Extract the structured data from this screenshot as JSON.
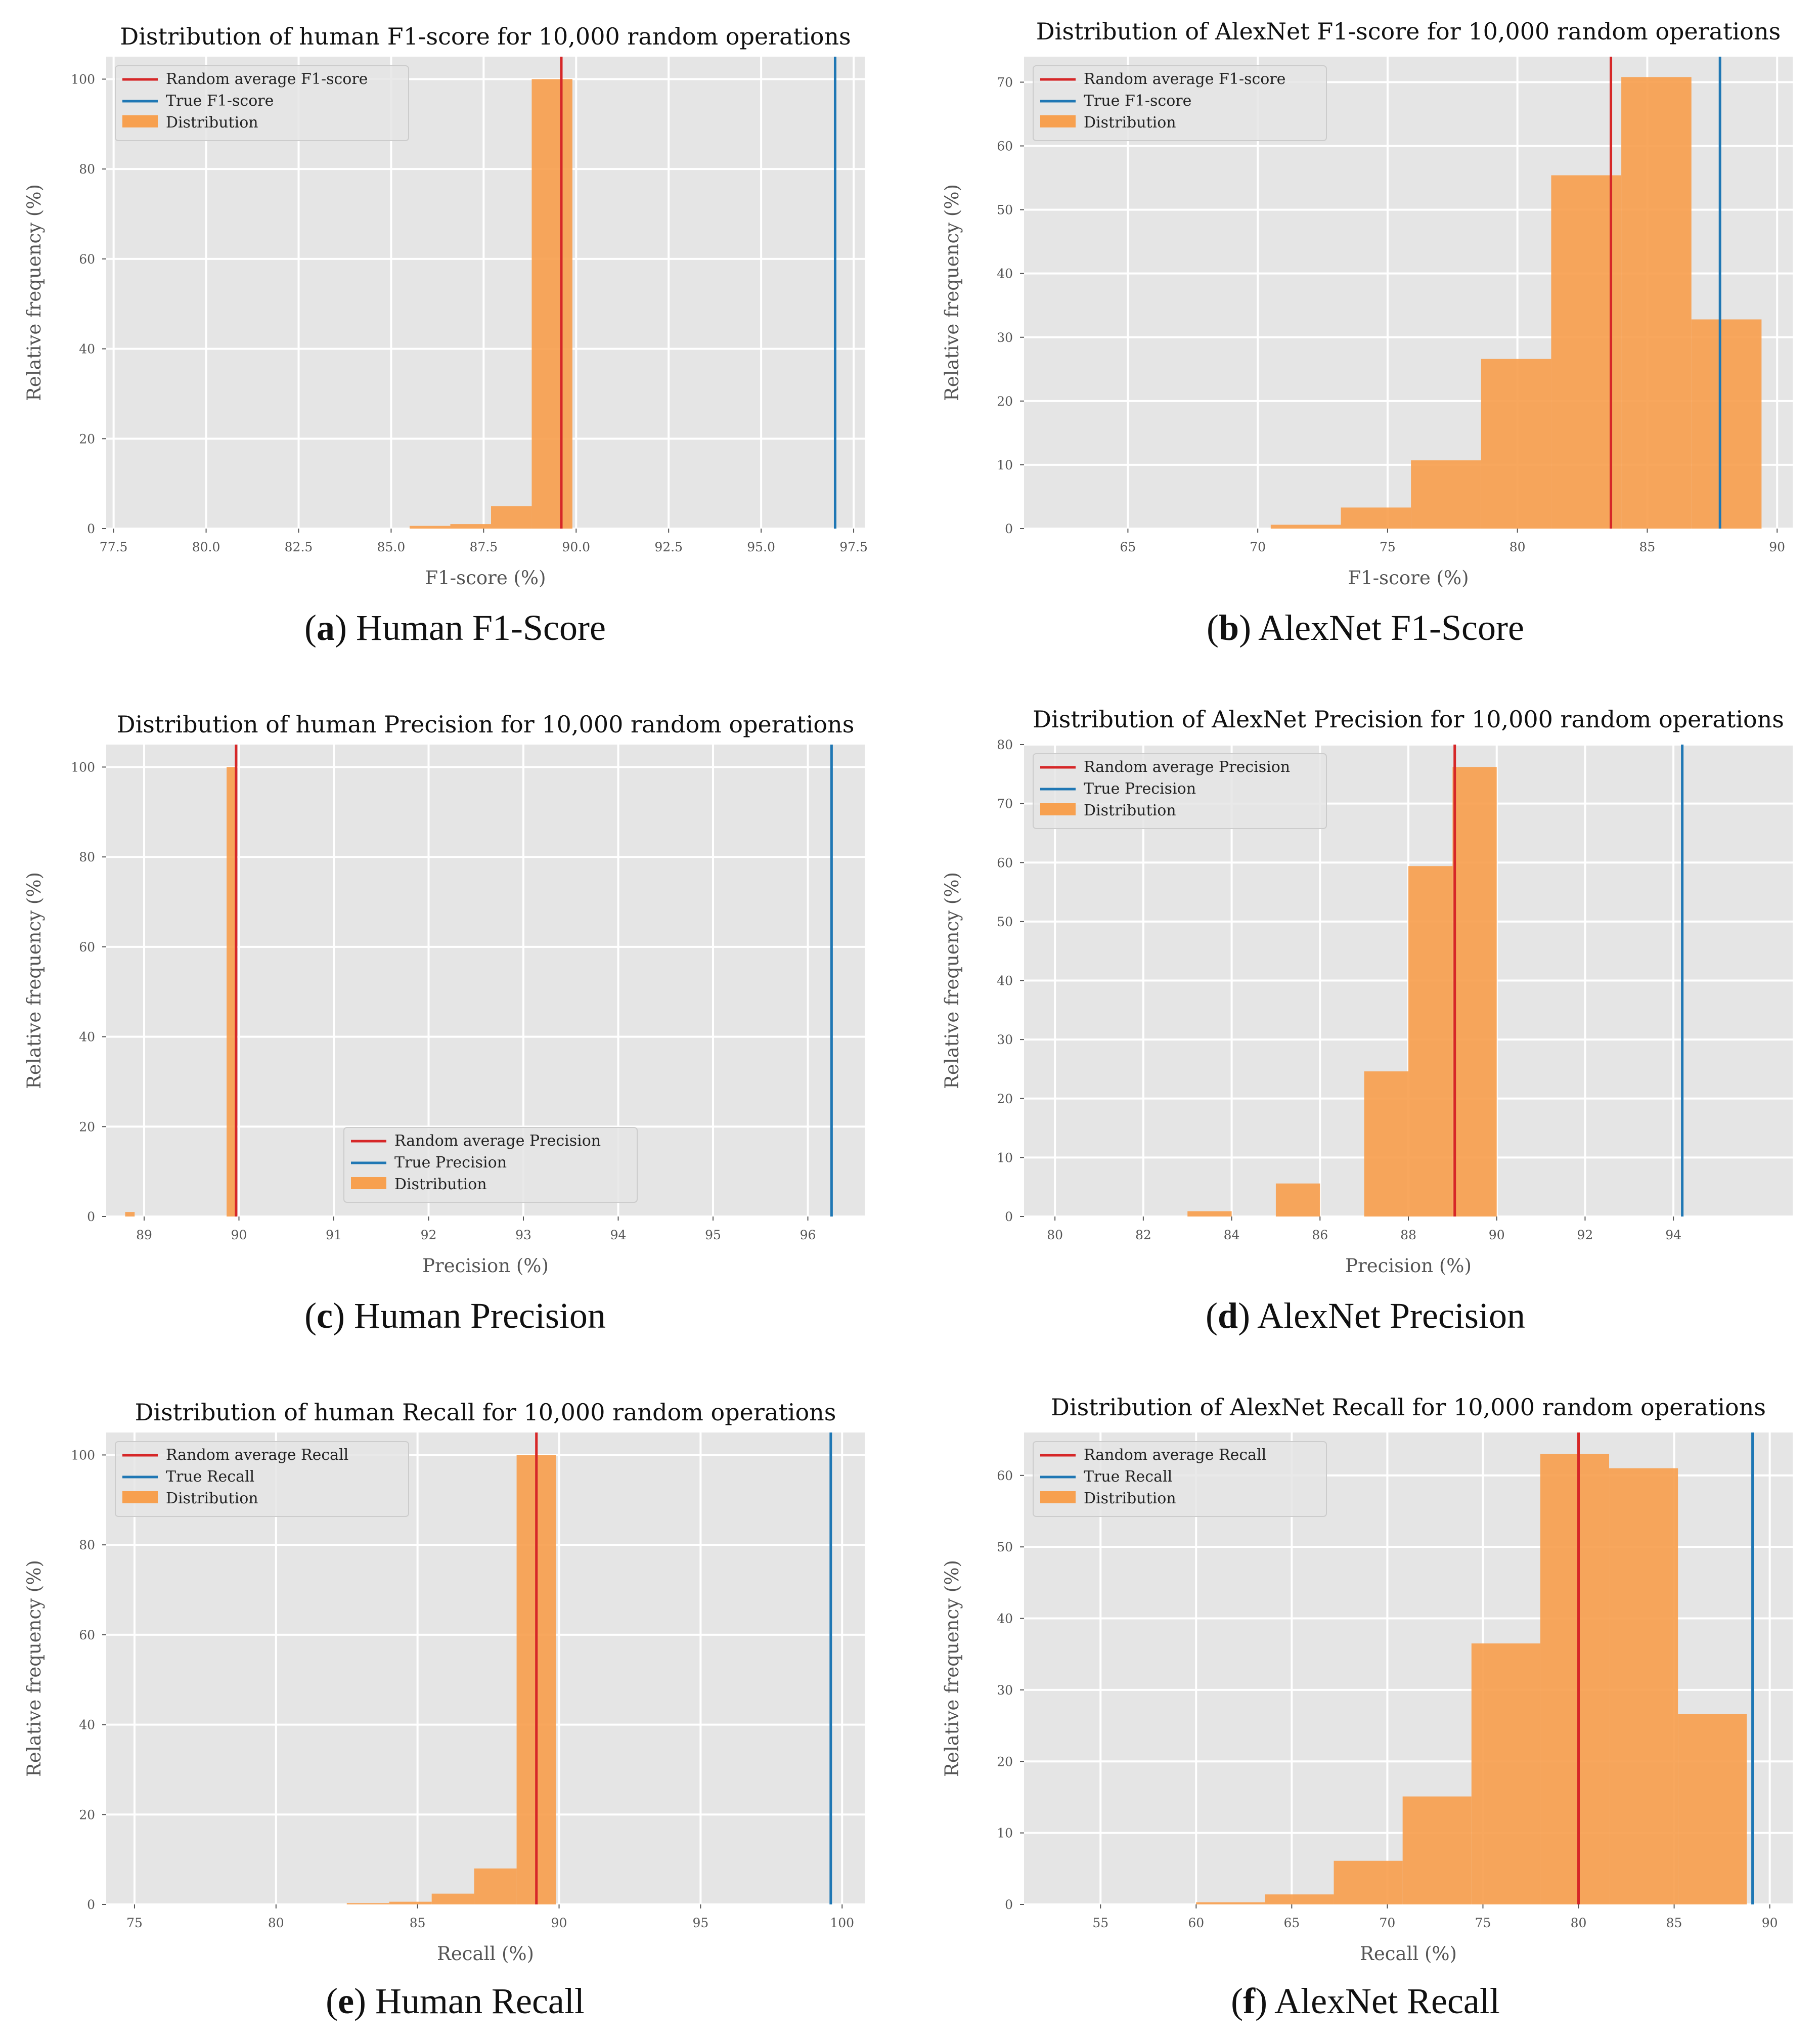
{
  "chart_data": [
    {
      "id": "a",
      "type": "bar",
      "title": "Distribution of human F1-score for 10,000 random operations",
      "xlabel": "F1-score (%)",
      "ylabel": "Relative frequency (%)",
      "xlim": [
        77.3,
        97.8
      ],
      "ylim": [
        0,
        105
      ],
      "xticks": [
        77.5,
        80.0,
        82.5,
        85.0,
        87.5,
        90.0,
        92.5,
        95.0,
        97.5
      ],
      "xtick_labels": [
        "77.5",
        "80.0",
        "82.5",
        "85.0",
        "87.5",
        "90.0",
        "92.5",
        "95.0",
        "97.5"
      ],
      "yticks": [
        0,
        20,
        40,
        60,
        80,
        100
      ],
      "bins": [
        [
          85.5,
          86.6,
          0.6
        ],
        [
          86.6,
          87.7,
          1.0
        ],
        [
          87.7,
          88.8,
          5.0
        ],
        [
          88.8,
          89.9,
          100.0
        ]
      ],
      "random_average": 89.6,
      "true_value": 97.0,
      "legend": [
        "Random average F1-score",
        "True F1-score",
        "Distribution"
      ],
      "legend_position": "top-left",
      "caption_letter": "a",
      "caption_text": " Human F1-Score"
    },
    {
      "id": "b",
      "type": "bar",
      "title": "Distribution of AlexNet F1-score for 10,000 random operations",
      "xlabel": "F1-score (%)",
      "ylabel": "Relative frequency (%)",
      "xlim": [
        61.0,
        90.6
      ],
      "ylim": [
        0,
        74
      ],
      "xticks": [
        65,
        70,
        75,
        80,
        85,
        90
      ],
      "xtick_labels": [
        "65",
        "70",
        "75",
        "80",
        "85",
        "90"
      ],
      "yticks": [
        0,
        10,
        20,
        30,
        40,
        50,
        60,
        70
      ],
      "bins": [
        [
          70.5,
          73.2,
          0.6
        ],
        [
          73.2,
          75.9,
          3.3
        ],
        [
          75.9,
          78.6,
          10.7
        ],
        [
          78.6,
          81.3,
          26.6
        ],
        [
          81.3,
          84.0,
          55.4
        ],
        [
          84.0,
          86.7,
          70.8
        ],
        [
          86.7,
          89.4,
          32.8
        ]
      ],
      "random_average": 83.6,
      "true_value": 87.8,
      "legend": [
        "Random average F1-score",
        "True F1-score",
        "Distribution"
      ],
      "legend_position": "top-left",
      "caption_letter": "b",
      "caption_text": " AlexNet F1-Score"
    },
    {
      "id": "c",
      "type": "bar",
      "title": "Distribution of human Precision for 10,000 random operations",
      "xlabel": "Precision (%)",
      "ylabel": "Relative frequency (%)",
      "xlim": [
        88.6,
        96.6
      ],
      "ylim": [
        0,
        105
      ],
      "xticks": [
        89,
        90,
        91,
        92,
        93,
        94,
        95,
        96
      ],
      "xtick_labels": [
        "89",
        "90",
        "91",
        "92",
        "93",
        "94",
        "95",
        "96"
      ],
      "yticks": [
        0,
        20,
        40,
        60,
        80,
        100
      ],
      "bins": [
        [
          88.8,
          88.9,
          1.0
        ],
        [
          89.87,
          89.97,
          100.0
        ]
      ],
      "random_average": 89.97,
      "true_value": 96.25,
      "legend": [
        "Random average Precision",
        "True Precision",
        "Distribution"
      ],
      "legend_position": "lower-center",
      "caption_letter": "c",
      "caption_text": " Human Precision"
    },
    {
      "id": "d",
      "type": "bar",
      "title": "Distribution of AlexNet Precision for 10,000 random operations",
      "xlabel": "Precision (%)",
      "ylabel": "Relative frequency (%)",
      "xlim": [
        79.3,
        96.7
      ],
      "ylim": [
        0,
        80
      ],
      "xticks": [
        80,
        82,
        84,
        86,
        88,
        90,
        92,
        94
      ],
      "xtick_labels": [
        "80",
        "82",
        "84",
        "86",
        "88",
        "90",
        "92",
        "94"
      ],
      "yticks": [
        0,
        10,
        20,
        30,
        40,
        50,
        60,
        70,
        80
      ],
      "bins": [
        [
          83.0,
          84.0,
          0.9
        ],
        [
          85.0,
          86.0,
          5.6
        ],
        [
          87.0,
          88.0,
          24.6
        ],
        [
          88.0,
          89.0,
          59.4
        ],
        [
          89.0,
          90.0,
          76.2
        ]
      ],
      "random_average": 89.05,
      "true_value": 94.2,
      "legend": [
        "Random average Precision",
        "True Precision",
        "Distribution"
      ],
      "legend_position": "top-left",
      "caption_letter": "d",
      "caption_text": " AlexNet Precision"
    },
    {
      "id": "e",
      "type": "bar",
      "title": "Distribution of human Recall for 10,000 random operations",
      "xlabel": "Recall (%)",
      "ylabel": "Relative frequency (%)",
      "xlim": [
        74.0,
        100.8
      ],
      "ylim": [
        0,
        105
      ],
      "xticks": [
        75,
        80,
        85,
        90,
        95,
        100
      ],
      "xtick_labels": [
        "75",
        "80",
        "85",
        "90",
        "95",
        "100"
      ],
      "yticks": [
        0,
        20,
        40,
        60,
        80,
        100
      ],
      "bins": [
        [
          82.5,
          84.0,
          0.3
        ],
        [
          84.0,
          85.5,
          0.6
        ],
        [
          85.5,
          87.0,
          2.4
        ],
        [
          87.0,
          88.5,
          8.0
        ],
        [
          88.5,
          89.9,
          100.0
        ]
      ],
      "random_average": 89.2,
      "true_value": 99.6,
      "legend": [
        "Random average Recall",
        "True Recall",
        "Distribution"
      ],
      "legend_position": "top-left",
      "caption_letter": "e",
      "caption_text": " Human Recall"
    },
    {
      "id": "f",
      "type": "bar",
      "title": "Distribution of AlexNet Recall for 10,000 random operations",
      "xlabel": "Recall (%)",
      "ylabel": "Relative frequency (%)",
      "xlim": [
        51.0,
        91.2
      ],
      "ylim": [
        0,
        66
      ],
      "xticks": [
        55,
        60,
        65,
        70,
        75,
        80,
        85,
        90
      ],
      "xtick_labels": [
        "55",
        "60",
        "65",
        "70",
        "75",
        "80",
        "85",
        "90"
      ],
      "yticks": [
        0,
        10,
        20,
        30,
        40,
        50,
        60
      ],
      "bins": [
        [
          60.0,
          63.6,
          0.3
        ],
        [
          63.6,
          67.2,
          1.4
        ],
        [
          67.2,
          70.8,
          6.1
        ],
        [
          70.8,
          74.4,
          15.1
        ],
        [
          74.4,
          78.0,
          36.5
        ],
        [
          78.0,
          81.6,
          63.0
        ],
        [
          81.6,
          85.2,
          61.0
        ],
        [
          85.2,
          88.8,
          26.6
        ]
      ],
      "random_average": 80.0,
      "true_value": 89.1,
      "legend": [
        "Random average Recall",
        "True Recall",
        "Distribution"
      ],
      "legend_position": "top-left",
      "caption_letter": "f",
      "caption_text": " AlexNet Recall"
    }
  ],
  "colors": {
    "background": "#e5e5e5",
    "grid": "#ffffff",
    "bars": "#f7a04f",
    "random_average_line": "#d62728",
    "true_value_line": "#1f77b4"
  }
}
